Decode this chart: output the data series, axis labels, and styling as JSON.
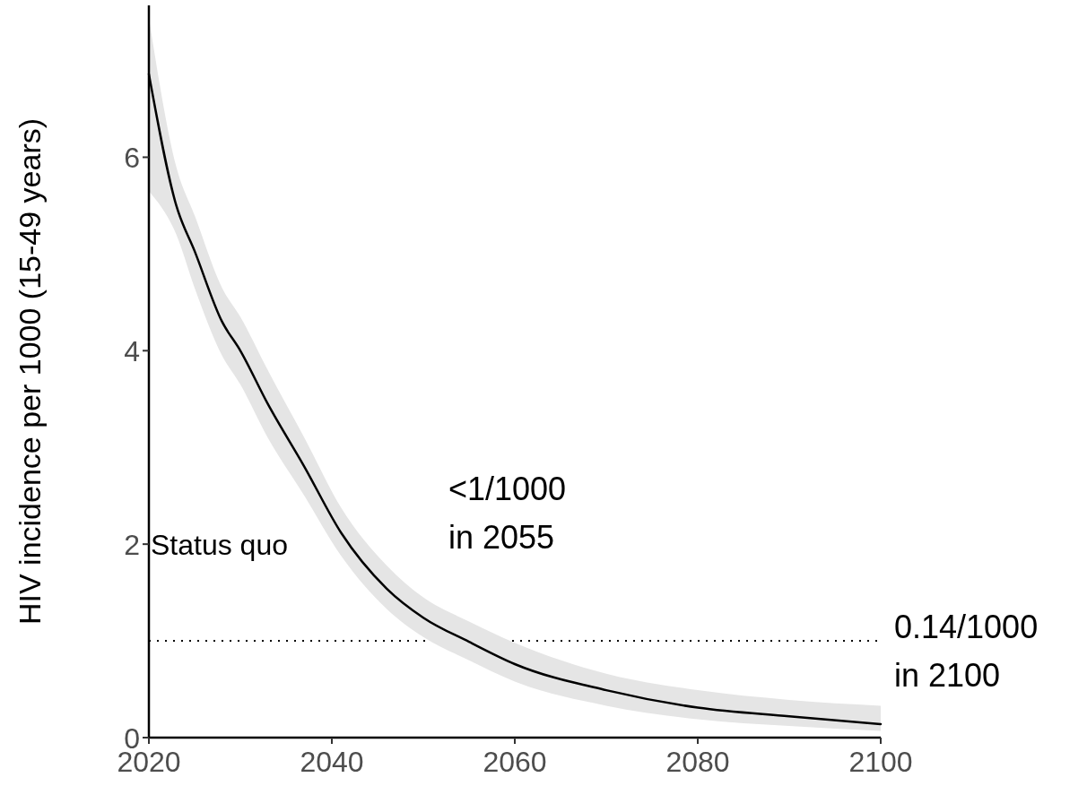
{
  "chart_data": {
    "type": "line",
    "ylabel": "HIV incidence per 1000 (15-49 years)",
    "x": [
      2020,
      2023,
      2025,
      2028,
      2030,
      2033,
      2037,
      2041,
      2046,
      2050,
      2055,
      2060,
      2070,
      2080,
      2090,
      2100
    ],
    "series": [
      {
        "name": "Status quo",
        "color": "#000000",
        "values": [
          6.86,
          5.5,
          5.03,
          4.3,
          4.0,
          3.45,
          2.8,
          2.12,
          1.54,
          1.24,
          0.99,
          0.76,
          0.49,
          0.31,
          0.22,
          0.14
        ],
        "lower": [
          5.65,
          5.2,
          4.65,
          3.95,
          3.65,
          3.1,
          2.5,
          1.88,
          1.33,
          1.04,
          0.8,
          0.58,
          0.33,
          0.19,
          0.12,
          0.07
        ],
        "upper": [
          7.44,
          5.9,
          5.4,
          4.65,
          4.35,
          3.8,
          3.1,
          2.38,
          1.78,
          1.45,
          1.2,
          0.98,
          0.66,
          0.49,
          0.39,
          0.33
        ]
      }
    ],
    "xlim": [
      2020,
      2100
    ],
    "xticks": [
      2020,
      2040,
      2060,
      2080,
      2100
    ],
    "ylim": [
      0,
      7.57
    ],
    "yticks": [
      0,
      2,
      4,
      6
    ],
    "ref_lines": [
      {
        "axis": "y",
        "value": 1,
        "line_style": "dotted",
        "color": "#000000"
      }
    ],
    "annotations": [
      "<1/1000\nin 2055",
      "0.14/1000\nin 2100"
    ],
    "grid": false,
    "marker": "none",
    "line_style": "solid"
  }
}
